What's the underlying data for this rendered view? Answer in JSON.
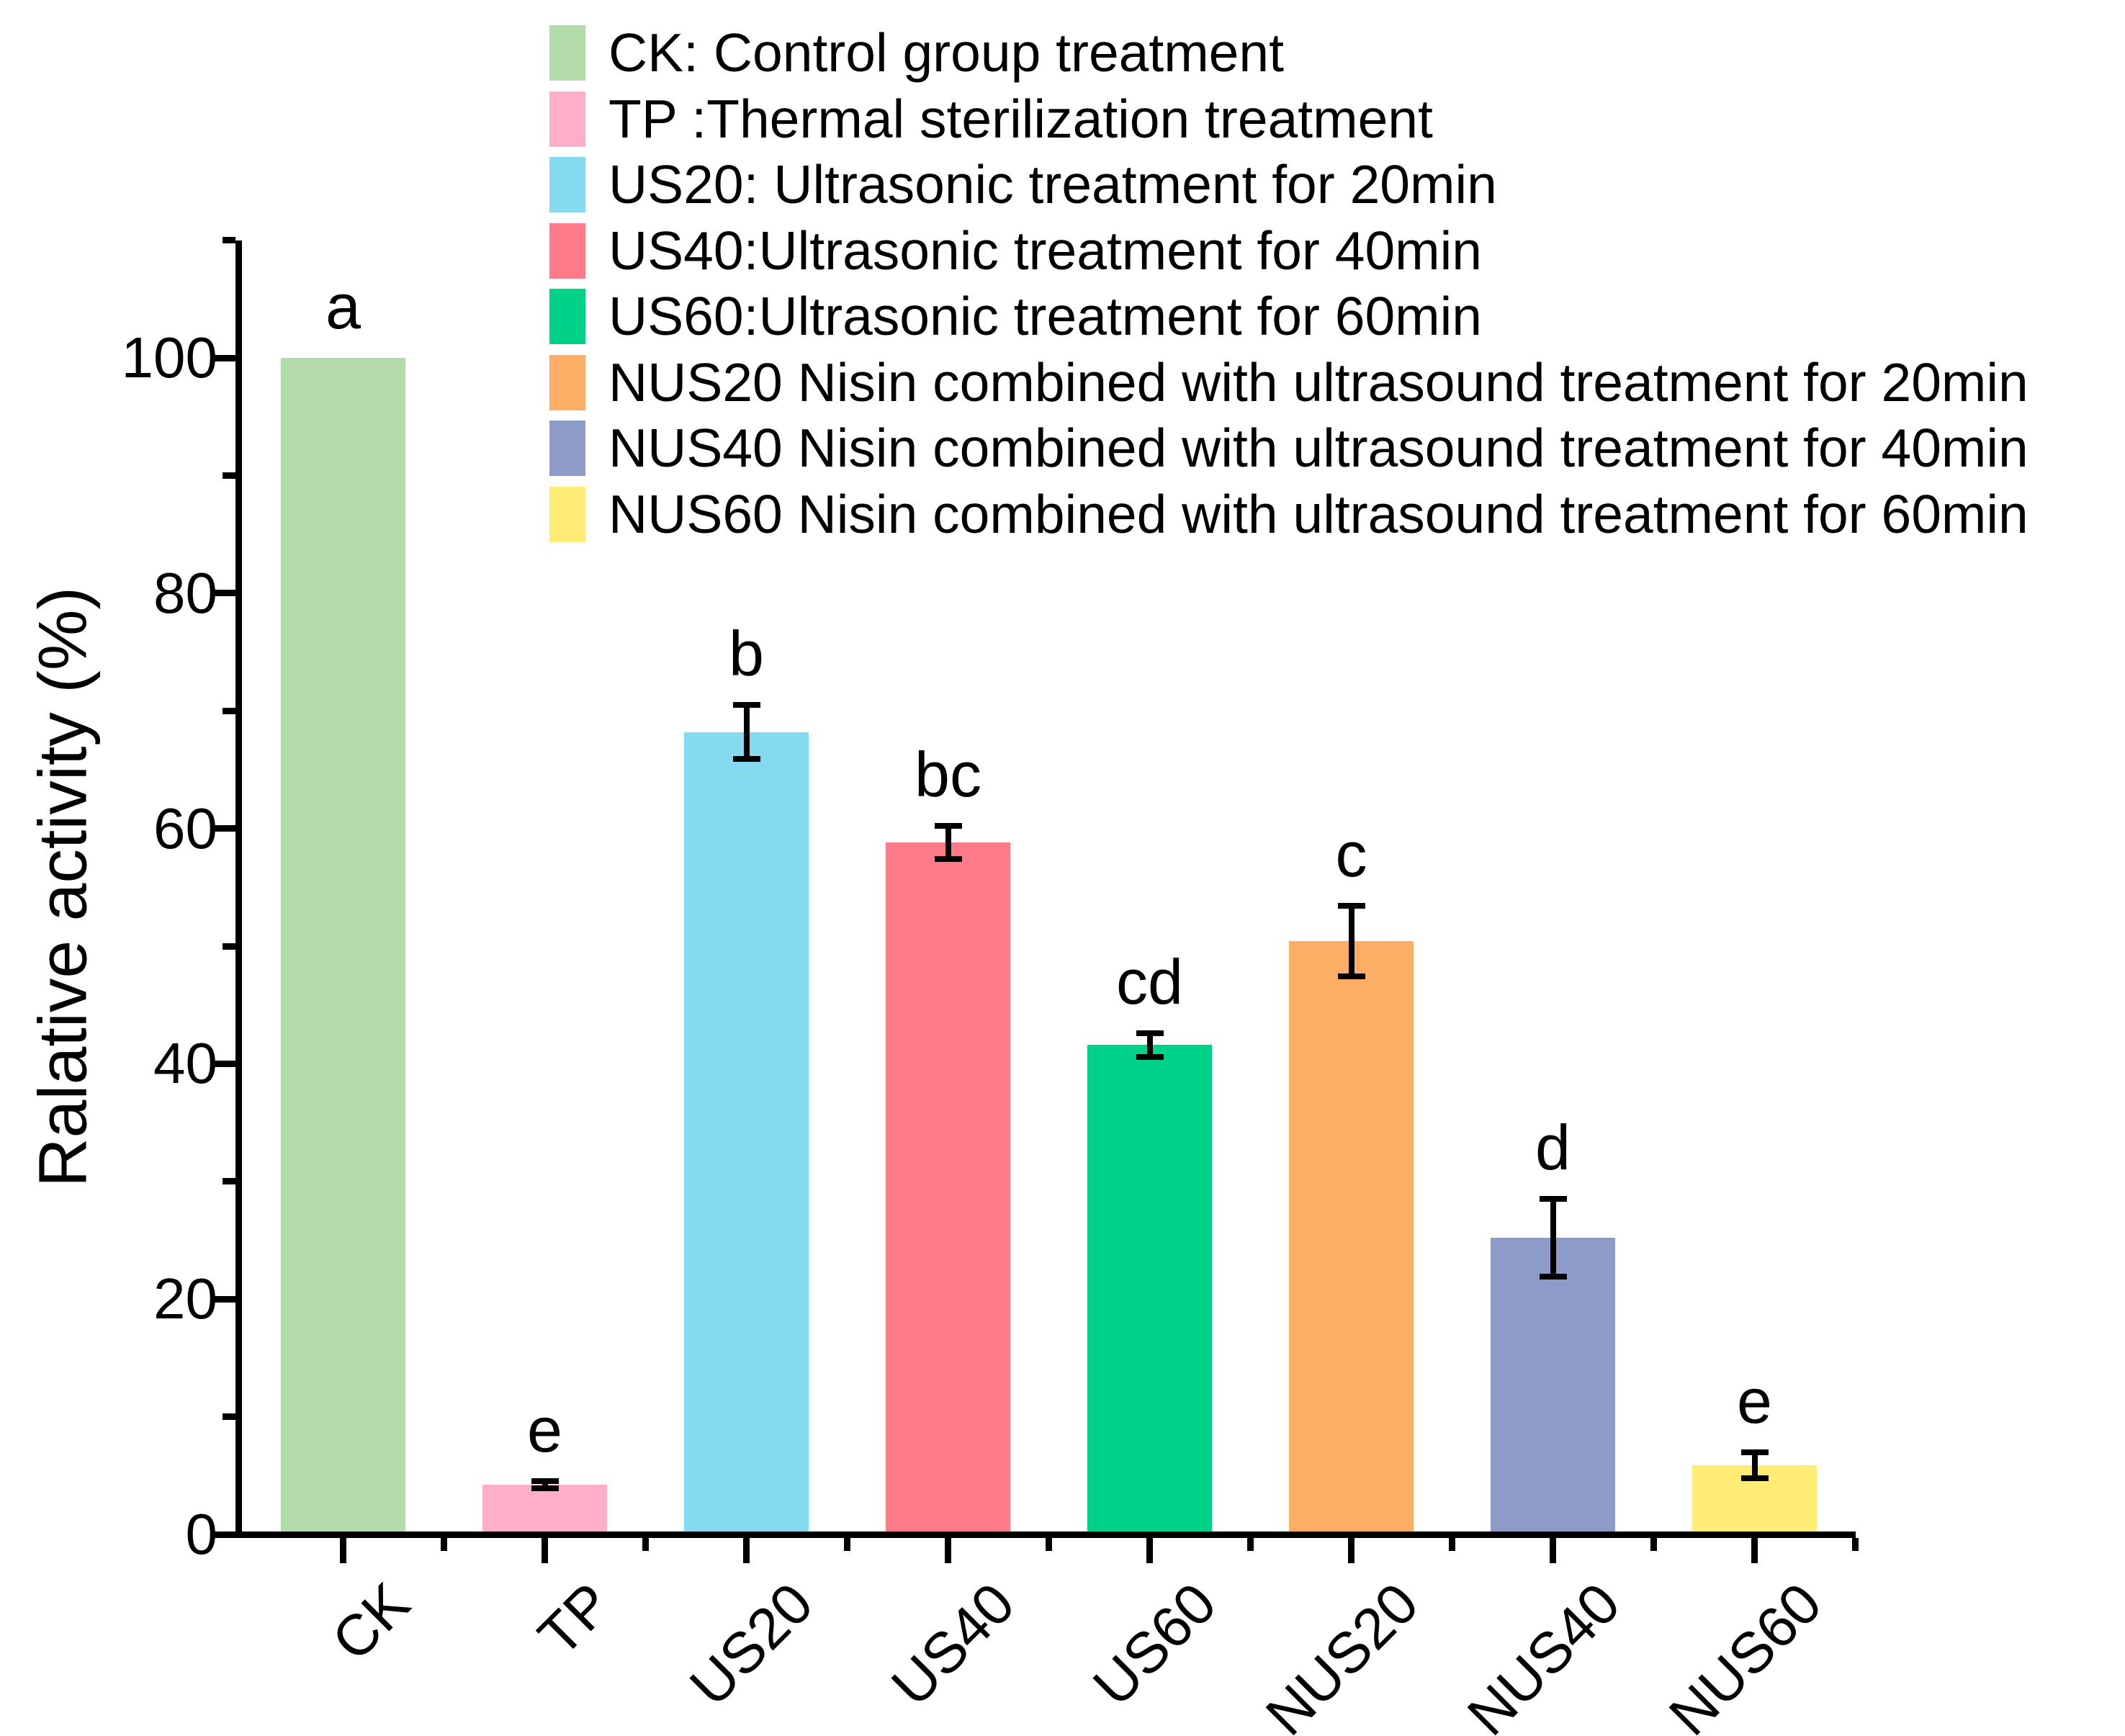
{
  "chart_data": {
    "type": "bar",
    "title": "",
    "xlabel": "",
    "ylabel": "Ralative activity (%)",
    "ylim": [
      0,
      110
    ],
    "yticks_major": [
      0,
      20,
      40,
      60,
      80,
      100
    ],
    "ytick_minor_step": 10,
    "grid": false,
    "legend_position": "top",
    "background": "#ffffff",
    "axis_color": "#000000",
    "categories": [
      "CK",
      "TP",
      "US20",
      "US40",
      "US60",
      "NUS20",
      "NUS40",
      "NUS60"
    ],
    "series": [
      {
        "name": "Ralative activity (%)",
        "values": [
          100,
          4.2,
          68.2,
          58.8,
          41.6,
          50.4,
          25.2,
          5.9
        ],
        "errors": [
          0,
          0.3,
          2.3,
          1.4,
          1.0,
          3.0,
          3.3,
          1.1
        ],
        "sig_letters": [
          "a",
          "e",
          "b",
          "bc",
          "cd",
          "c",
          "d",
          "e"
        ],
        "colors": [
          "#b4dcaa",
          "#ffaec9",
          "#85daf0",
          "#fd7b88",
          "#00d188",
          "#fdad66",
          "#8e9bc9",
          "#ffec75"
        ]
      }
    ],
    "legend": {
      "entries": [
        {
          "label": "CK: Control group treatment",
          "color": "#b4dcaa"
        },
        {
          "label": "TP :Thermal sterilization treatment",
          "color": "#ffaec9"
        },
        {
          "label": "US20: Ultrasonic treatment for 20min",
          "color": "#85daf0"
        },
        {
          "label": "US40:Ultrasonic treatment for 40min",
          "color": "#fd7b88"
        },
        {
          "label": "US60:Ultrasonic treatment for 60min",
          "color": "#00d188"
        },
        {
          "label": "NUS20 Nisin combined with ultrasound treatment for 20min",
          "color": "#fdad66"
        },
        {
          "label": "NUS40 Nisin combined with ultrasound treatment for 40min",
          "color": "#8e9bc9"
        },
        {
          "label": "NUS60 Nisin combined with ultrasound treatment for 60min",
          "color": "#ffec75"
        }
      ]
    }
  }
}
